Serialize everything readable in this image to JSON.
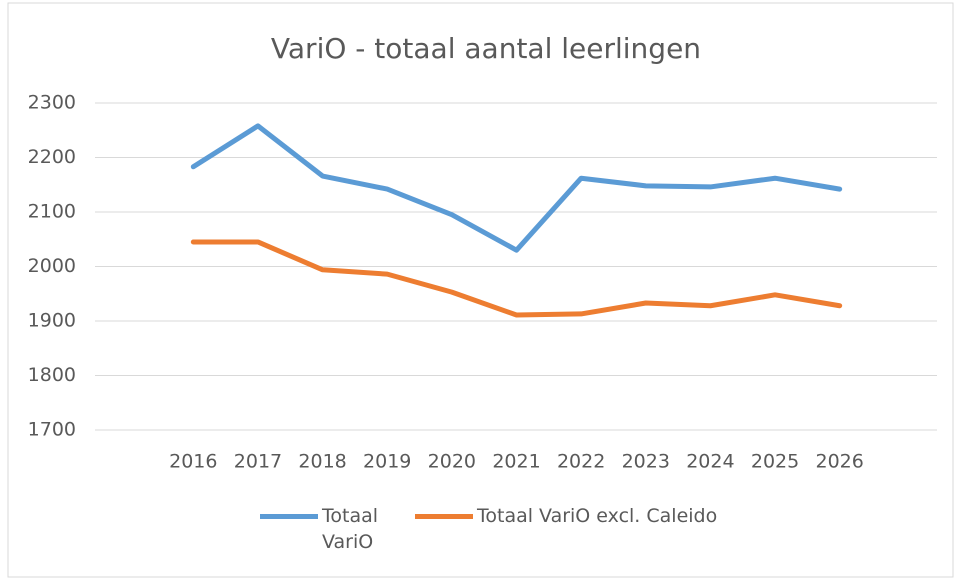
{
  "chart_data": {
    "type": "line",
    "title": "VariO -  totaal aantal leerlingen",
    "categories": [
      "2016",
      "2017",
      "2018",
      "2019",
      "2020",
      "2021",
      "2022",
      "2023",
      "2024",
      "2025",
      "2026"
    ],
    "series": [
      {
        "name": "Totaal VariO",
        "color": "#5b9bd5",
        "values": [
          2183,
          2258,
          2166,
          2142,
          2095,
          2030,
          2162,
          2148,
          2146,
          2162,
          2142
        ]
      },
      {
        "name": "Totaal VariO excl. Caleido",
        "color": "#ed7d31",
        "values": [
          2045,
          2045,
          1994,
          1986,
          1953,
          1911,
          1913,
          1933,
          1928,
          1948,
          1928
        ]
      }
    ],
    "ylim": [
      1700,
      2300
    ],
    "yticks": [
      1700,
      1800,
      1900,
      2000,
      2100,
      2200,
      2300
    ],
    "grid": true,
    "legend": "bottom"
  }
}
